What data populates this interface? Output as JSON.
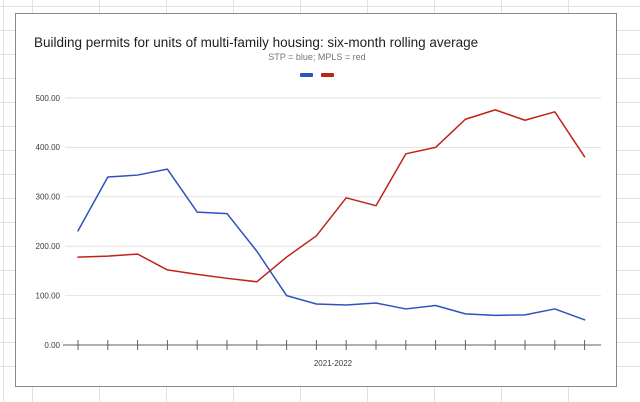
{
  "app": {
    "background": "spreadsheet-grid",
    "grid_color": "#e1e1e1"
  },
  "chart": {
    "border_color": "#898989",
    "title_color": "#1f1f1f",
    "subtitle_color": "#757575",
    "axis_color": "#616161",
    "gridline_color": "#e2e2e2",
    "label_color": "#3c3c3c"
  },
  "chart_data": {
    "type": "line",
    "title": "Building permits for units of multi-family housing: six-month rolling average",
    "subtitle": "STP = blue; MPLS = red",
    "xlabel": "2021-2022",
    "ylim": [
      0,
      500
    ],
    "y_ticks": [
      0,
      100,
      200,
      300,
      400,
      500
    ],
    "y_tick_labels": [
      "0.00",
      "100.00",
      "200.00",
      "300.00",
      "400.00",
      "500.00"
    ],
    "x_tick_count": 18,
    "x_tick_labels_shown": false,
    "grid": true,
    "legend_position": "top-center",
    "legend_style": "color-markers-only",
    "series": [
      {
        "name": "STP",
        "color": "#2f53bd",
        "values": [
          231,
          340,
          344,
          356,
          269,
          266,
          190,
          100,
          83,
          81,
          85,
          73,
          80,
          63,
          60,
          61,
          73,
          51
        ]
      },
      {
        "name": "MPLS",
        "color": "#bf2318",
        "values": [
          178,
          180,
          184,
          152,
          143,
          135,
          128,
          178,
          221,
          298,
          282,
          387,
          400,
          457,
          476,
          455,
          472,
          381
        ]
      }
    ]
  }
}
